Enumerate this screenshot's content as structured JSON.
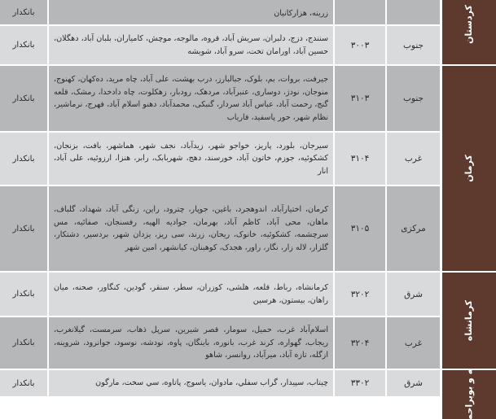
{
  "colors": {
    "province_bg": "#5e3a2e",
    "row_light": "#d9dadc",
    "row_dark": "#b6b7b9"
  },
  "provinces": [
    {
      "name": "کردستان"
    },
    {
      "name": "کرمان"
    },
    {
      "name": "کرمانشاه"
    },
    {
      "name": "کهگیلویه و بویراحمد"
    }
  ],
  "rows": [
    {
      "category": "بانکدار",
      "cities": "زرینه، هزارکانیان",
      "code": "",
      "region": ""
    },
    {
      "category": "بانکدار",
      "cities": "سنندج، دزج، دلبران، سریش آباد، قروه، مالوجه، موچش، کامیاران، بلبان آباد، دهگلان، حسین آباد، اورامان تخت، سرو آباد، شویشه",
      "code": "۳۰۰۳",
      "region": "جنوب"
    },
    {
      "category": "بانکدار",
      "cities": "جیرفت، بروات، بم، بلوک، جبالبارز، درب بهشت، علی آباد، چاه مرید، ده‌کهان، کهنوج، منوجان، نودژ، دوساری، عنبرآباد، مردهک، رودبار، زهکلوت، چاه دادخدا، رمشک، قلعه گنج، رحمت آباد، عباس آباد سردار، گنبکی، محمدآباد، دهنو اسلام آباد، فهرج، نرماشیر، نظام شهر، حور پاسفید، فاریاب",
      "code": "۳۱۰۳",
      "region": "جنوب"
    },
    {
      "category": "بانکدار",
      "cities": "سیرجان، بلورد، پاریز، خواجو شهر، زیدآباد، نجف شهر، هماشهر، بافت، بزنجان، کشکوئیه، جوزم، خاتون آباد، خورسند، دهج، شهربابک، رابر، هنزا، ارزوئیه، علی آباد، انار",
      "code": "۳۱۰۴",
      "region": "غرب"
    },
    {
      "category": "بانکدار",
      "cities": "کرمان، اختیارآباد، اندوهجرد، باغین، جوپار، چترود، راین، زنگی آباد، شهداد، گلباف، ماهان، محی آباد، کاظم آباد، بهرمان، جوادیه الهیه، رفسنجان، صفائیه، مس سرچشمه، کشکوئیه، خانوک، ریحان، زرند، سی ریز، یزدان شهر، بردسیر، دشتکار، گلزار، لاله زار، نگار، راور، هجدک، کوهبنان، کیانشهر، امین شهر",
      "code": "۳۱۰۵",
      "region": "مرکزی"
    },
    {
      "category": "بانکدار",
      "cities": "کرمانشاه، رباط، قلعه، هلشی، کوزران، سطر، سنقر، گودین، کنگاور، صحنه، میان راهان، بیستون، هرسین",
      "code": "۳۲۰۲",
      "region": "شرق"
    },
    {
      "category": "بانکدار",
      "cities": "اسلام‌آباد غرب، حمیل، سومار، قصر شیرین، سرپل ذهاب، سرمست، گیلانغرب، ریجاب، گهواره، کرند غرب، بانوره، باینگان، پاوه، نودشه، نوسود، جوانرود، شروینه، ازگله، تازه آباد، میرآباد، روانسر، شاهو",
      "code": "۳۲۰۴",
      "region": "غرب"
    },
    {
      "category": "بانکدار",
      "cities": "چیتاب، سپیدار، گراب سفلي، مادوان، یاسوج، پاتاوه، سي سخت، مارگون",
      "code": "۳۳۰۲",
      "region": "شرق"
    }
  ]
}
